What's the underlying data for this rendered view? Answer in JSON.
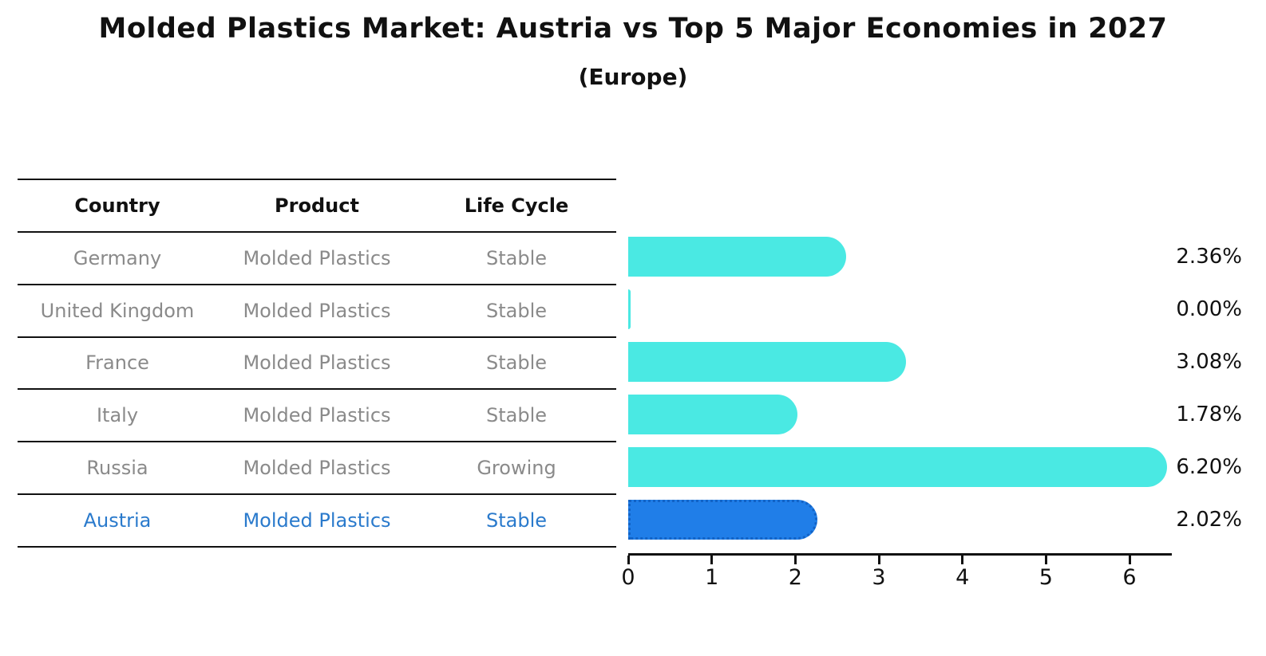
{
  "header": {
    "title": "Molded Plastics Market: Austria vs Top 5 Major Economies in 2027",
    "subtitle": "(Europe)"
  },
  "table": {
    "headers": [
      "Country",
      "Product",
      "Life Cycle"
    ],
    "rows": [
      {
        "country": "Germany",
        "product": "Molded Plastics",
        "life_cycle": "Stable",
        "highlight": false
      },
      {
        "country": "United Kingdom",
        "product": "Molded Plastics",
        "life_cycle": "Stable",
        "highlight": false
      },
      {
        "country": "France",
        "product": "Molded Plastics",
        "life_cycle": "Stable",
        "highlight": false
      },
      {
        "country": "Italy",
        "product": "Molded Plastics",
        "life_cycle": "Stable",
        "highlight": false
      },
      {
        "country": "Russia",
        "product": "Molded Plastics",
        "life_cycle": "Growing",
        "highlight": false
      },
      {
        "country": "Austria",
        "product": "Molded Plastics",
        "life_cycle": "Stable",
        "highlight": true
      }
    ]
  },
  "chart_data": {
    "type": "bar",
    "orientation": "horizontal",
    "title": "Molded Plastics Market: Austria vs Top 5 Major Economies in 2027",
    "subtitle": "(Europe)",
    "categories": [
      "Germany",
      "United Kingdom",
      "France",
      "Italy",
      "Russia",
      "Austria"
    ],
    "values": [
      2.36,
      0.0,
      3.08,
      1.78,
      6.2,
      2.02
    ],
    "value_labels": [
      "2.36%",
      "0.00%",
      "3.08%",
      "1.78%",
      "6.20%",
      "2.02%"
    ],
    "x_ticks": [
      "0",
      "1",
      "2",
      "3",
      "4",
      "5",
      "6"
    ],
    "xlim": [
      0,
      6.5
    ],
    "grid": false,
    "legend": "none",
    "highlight_index": 5,
    "colors": {
      "bar_default": "#4AE9E3",
      "bar_highlight": "#207EE8",
      "bar_highlight_border": "#1263C6",
      "row_text": "#8A8A8A",
      "highlight_text": "#2A7ACC",
      "axis": "#111111"
    }
  }
}
